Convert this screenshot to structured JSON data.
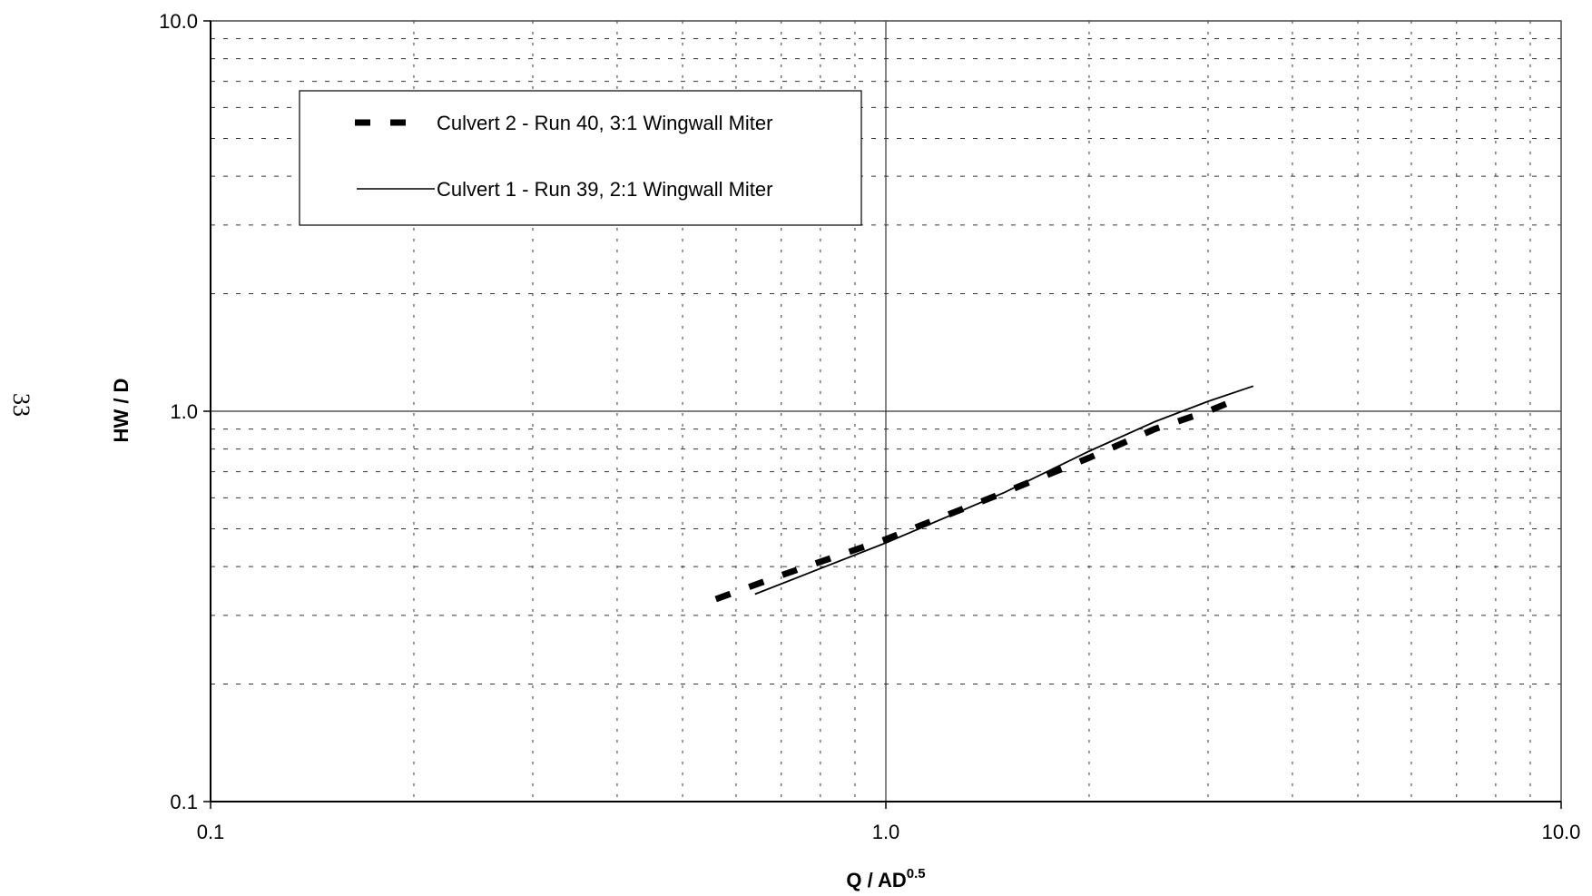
{
  "page_number": "33",
  "chart_data": {
    "type": "line",
    "x_scale": "log",
    "y_scale": "log",
    "xlim": [
      0.1,
      10.0
    ],
    "ylim": [
      0.1,
      10.0
    ],
    "grid": true,
    "xlabel_main": "Q / AD",
    "xlabel_sup": "0.5",
    "ylabel": "HW / D",
    "x_ticks": [
      {
        "value": 0.1,
        "label": "0.1"
      },
      {
        "value": 1.0,
        "label": "1.0"
      },
      {
        "value": 10.0,
        "label": "10.0"
      }
    ],
    "y_ticks": [
      {
        "value": 0.1,
        "label": "0.1"
      },
      {
        "value": 1.0,
        "label": "1.0"
      },
      {
        "value": 10.0,
        "label": "10.0"
      }
    ],
    "legend_position": "top-left",
    "series": [
      {
        "name": "Culvert 2 - Run 40, 3:1 Wingwall Miter",
        "style": "dashed-thick",
        "color": "#000000",
        "x": [
          0.56,
          0.7,
          1.0,
          1.5,
          2.0,
          2.5,
          3.0,
          3.3
        ],
        "y": [
          0.33,
          0.38,
          0.47,
          0.62,
          0.76,
          0.9,
          1.0,
          1.07
        ]
      },
      {
        "name": "Culvert 1 - Run 39, 2:1 Wingwall Miter",
        "style": "solid-thin",
        "color": "#000000",
        "x": [
          0.64,
          1.0,
          1.5,
          2.0,
          2.5,
          3.0,
          3.5
        ],
        "y": [
          0.34,
          0.46,
          0.62,
          0.79,
          0.94,
          1.06,
          1.16
        ]
      }
    ]
  }
}
